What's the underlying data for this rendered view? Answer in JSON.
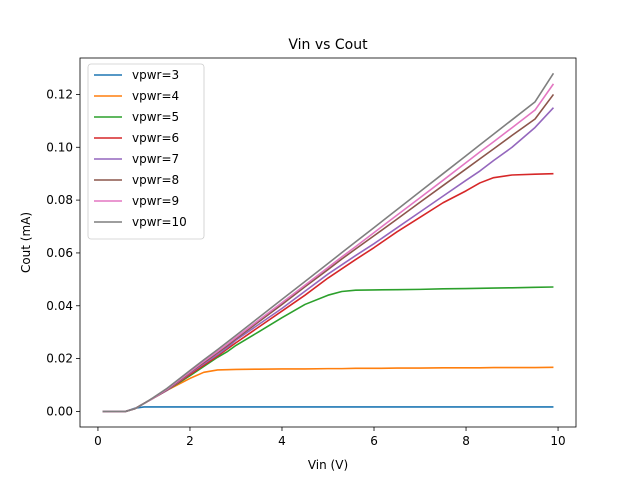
{
  "chart_data": {
    "type": "line",
    "title": "Vin vs Cout",
    "xlabel": "Vin (V)",
    "ylabel": "Cout (mA)",
    "xlim": [
      -0.39,
      10.39
    ],
    "ylim": [
      -0.0059,
      0.1338
    ],
    "xticks": [
      0,
      2,
      4,
      6,
      8,
      10
    ],
    "yticks": [
      0.0,
      0.02,
      0.04,
      0.06,
      0.08,
      0.1,
      0.12
    ],
    "ytick_labels": [
      "0.00",
      "0.02",
      "0.04",
      "0.06",
      "0.08",
      "0.10",
      "0.12"
    ],
    "grid": false,
    "legend_position": "upper-left",
    "x": [
      0.1,
      0.4,
      0.6,
      0.8,
      1.0,
      1.2,
      1.5,
      2.0,
      2.3,
      2.6,
      2.8,
      3.0,
      3.5,
      4.0,
      4.5,
      5.0,
      5.3,
      5.6,
      6.0,
      6.5,
      7.0,
      7.5,
      8.0,
      8.3,
      8.6,
      9.0,
      9.5,
      9.9
    ],
    "series": [
      {
        "name": "vpwr=3",
        "color": "#1f77b4",
        "values": [
          0.0,
          0.0,
          0.0,
          0.0012,
          0.0017,
          0.0017,
          0.0017,
          0.0017,
          0.0017,
          0.0017,
          0.0017,
          0.0017,
          0.0017,
          0.0017,
          0.0017,
          0.0017,
          0.0017,
          0.0017,
          0.0017,
          0.0017,
          0.0017,
          0.0017,
          0.0017,
          0.0017,
          0.0017,
          0.0017,
          0.0017,
          0.0017
        ]
      },
      {
        "name": "vpwr=4",
        "color": "#ff7f0e",
        "values": [
          0.0,
          0.0,
          0.0,
          0.001,
          0.003,
          0.005,
          0.008,
          0.0125,
          0.0148,
          0.0157,
          0.0158,
          0.0159,
          0.016,
          0.0161,
          0.0161,
          0.0162,
          0.0162,
          0.0163,
          0.0163,
          0.0164,
          0.0164,
          0.0165,
          0.0165,
          0.0165,
          0.0166,
          0.0166,
          0.0166,
          0.0167
        ]
      },
      {
        "name": "vpwr=5",
        "color": "#2ca02c",
        "values": [
          0.0,
          0.0,
          0.0,
          0.001,
          0.003,
          0.005,
          0.008,
          0.0135,
          0.017,
          0.0205,
          0.0225,
          0.025,
          0.0302,
          0.0355,
          0.0405,
          0.044,
          0.0454,
          0.0459,
          0.046,
          0.0461,
          0.0462,
          0.0464,
          0.0465,
          0.0466,
          0.0467,
          0.0468,
          0.047,
          0.0471
        ]
      },
      {
        "name": "vpwr=6",
        "color": "#d62728",
        "values": [
          0.0,
          0.0,
          0.0,
          0.001,
          0.003,
          0.005,
          0.008,
          0.014,
          0.0175,
          0.021,
          0.0235,
          0.026,
          0.032,
          0.038,
          0.044,
          0.0505,
          0.054,
          0.0575,
          0.062,
          0.068,
          0.0735,
          0.079,
          0.0835,
          0.0865,
          0.0885,
          0.0895,
          0.0898,
          0.09
        ]
      },
      {
        "name": "vpwr=7",
        "color": "#9467bd",
        "values": [
          0.0,
          0.0,
          0.0,
          0.001,
          0.003,
          0.005,
          0.008,
          0.0145,
          0.018,
          0.0215,
          0.024,
          0.027,
          0.033,
          0.039,
          0.0455,
          0.052,
          0.0555,
          0.059,
          0.0635,
          0.0695,
          0.0755,
          0.0815,
          0.0875,
          0.091,
          0.095,
          0.1,
          0.1075,
          0.115
        ]
      },
      {
        "name": "vpwr=8",
        "color": "#8c564b",
        "values": [
          0.0,
          0.0,
          0.0,
          0.001,
          0.003,
          0.005,
          0.0082,
          0.0148,
          0.0185,
          0.0222,
          0.0247,
          0.0275,
          0.034,
          0.0405,
          0.0472,
          0.0537,
          0.0577,
          0.0615,
          0.0665,
          0.0728,
          0.0792,
          0.0855,
          0.0918,
          0.0956,
          0.0994,
          0.1045,
          0.1107,
          0.12
        ]
      },
      {
        "name": "vpwr=9",
        "color": "#e377c2",
        "values": [
          0.0,
          0.0,
          0.0,
          0.001,
          0.003,
          0.005,
          0.0084,
          0.015,
          0.0189,
          0.0227,
          0.0253,
          0.028,
          0.0346,
          0.0412,
          0.0478,
          0.0545,
          0.0585,
          0.0624,
          0.0677,
          0.0743,
          0.0809,
          0.0875,
          0.0942,
          0.0982,
          0.1021,
          0.1074,
          0.1141,
          0.124
        ]
      },
      {
        "name": "vpwr=10",
        "color": "#7f7f7f",
        "values": [
          0.0,
          0.0,
          0.0,
          0.001,
          0.003,
          0.0052,
          0.0087,
          0.0155,
          0.0195,
          0.0234,
          0.0261,
          0.0288,
          0.0356,
          0.0424,
          0.0492,
          0.056,
          0.0601,
          0.0642,
          0.0696,
          0.0764,
          0.0832,
          0.09,
          0.0968,
          0.1009,
          0.105,
          0.1104,
          0.1172,
          0.128
        ]
      }
    ]
  }
}
